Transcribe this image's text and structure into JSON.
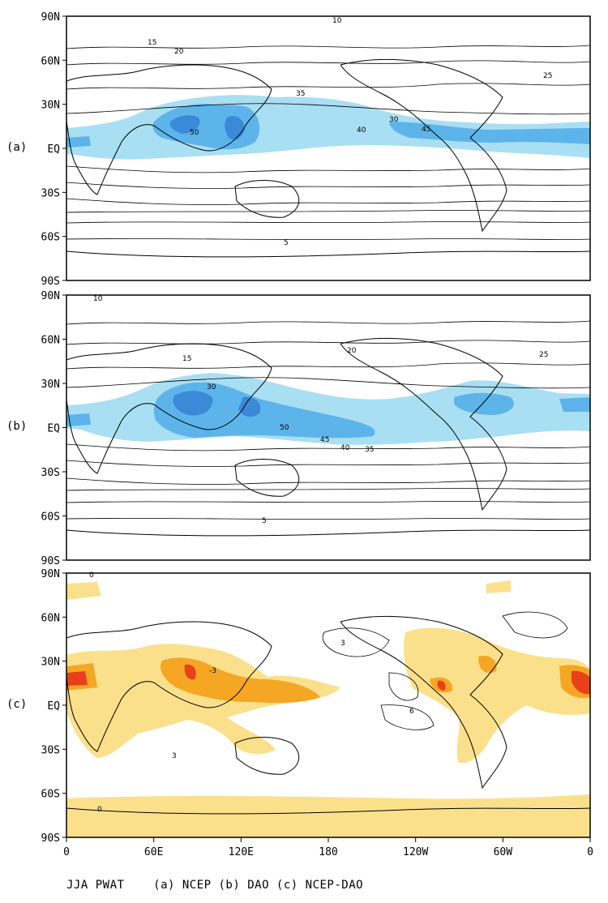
{
  "panels": [
    {
      "id": "a",
      "label": "(a)",
      "contour_labels": [
        "10",
        "15",
        "20",
        "25",
        "30",
        "35",
        "40",
        "45",
        "50",
        "5"
      ]
    },
    {
      "id": "b",
      "label": "(b)",
      "contour_labels": [
        "10",
        "15",
        "20",
        "25",
        "30",
        "35",
        "40",
        "45",
        "50",
        "5"
      ]
    },
    {
      "id": "c",
      "label": "(c)",
      "contour_labels": [
        "0",
        "3",
        "-3",
        "6",
        "0",
        "3"
      ]
    }
  ],
  "lat_ticks": [
    "90N",
    "60N",
    "30N",
    "EQ",
    "30S",
    "60S",
    "90S"
  ],
  "lon_ticks": [
    "0",
    "60E",
    "120E",
    "180",
    "120W",
    "60W",
    "0"
  ],
  "caption": "JJA PWAT    (a) NCEP (b) DAO (c) NCEP-DAO",
  "colors": {
    "light_blue": "#a9dff2",
    "mid_blue": "#5db4ea",
    "dark_blue": "#3a8ad8",
    "light_yellow": "#fbe08c",
    "orange": "#f5a623",
    "red": "#e8401a"
  }
}
